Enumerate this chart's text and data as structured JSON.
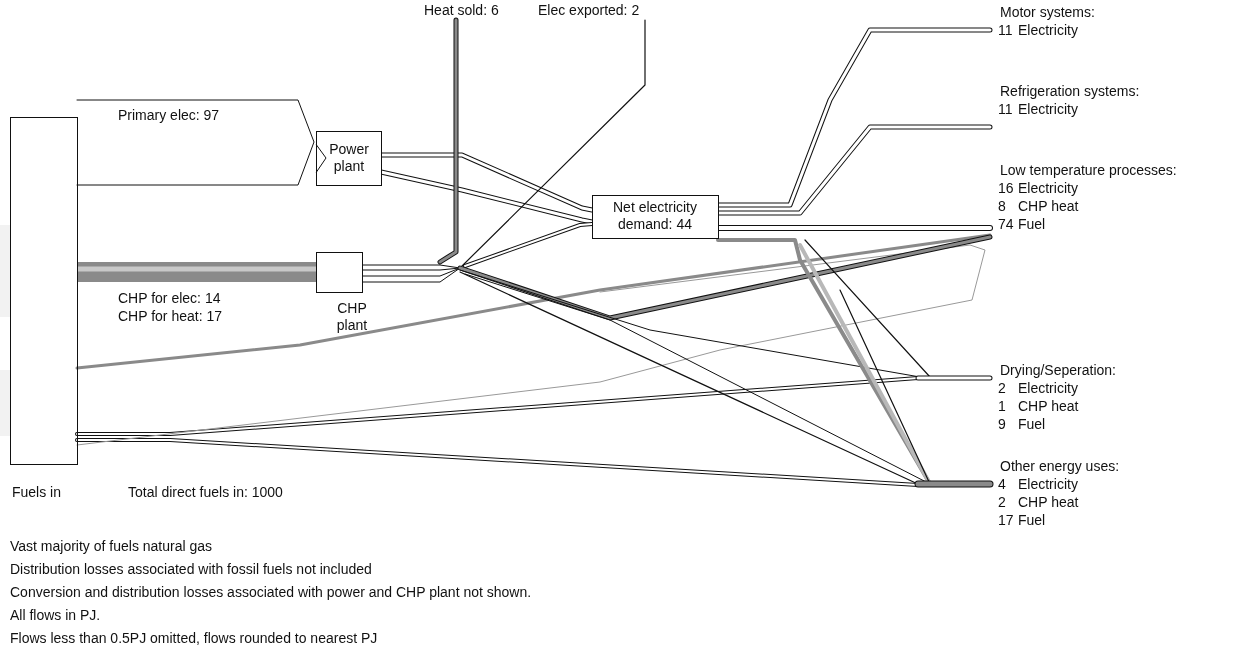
{
  "chart_data": {
    "type": "other",
    "data_labels": true,
    "categories": [
      "Electricity",
      "Electricity",
      "Electricity",
      "CHP heat",
      "Fuel",
      "Electricity",
      "CHP heat",
      "Fuel",
      "Electricity",
      "CHP heat",
      "Fuel"
    ],
    "values": [
      11,
      11,
      16,
      8,
      74,
      2,
      1,
      9,
      4,
      2,
      17
    ],
    "annotations": [
      "Motor systems:",
      "Refrigeration systems:",
      "Low temperature processes:",
      "Drying/Seperation:",
      "Other energy uses:",
      "Power plant",
      "CHP plant",
      "Fuels in",
      "Vast majority of fuels natural gas",
      "Distribution losses associated with fossil fuels not included",
      "Conversion and distribution losses associated with power and CHP plant not shown.",
      "All flows in PJ.",
      "Flows less than 0.5PJ omitted, flows rounded to nearest PJ",
      "Heat sold: 6",
      "Elec exported: 2",
      "Primary elec: 97",
      "Net electricity demand: 44",
      "CHP for elec: 14",
      "CHP for heat: 17",
      "Total direct fuels in: 1000"
    ]
  }
}
